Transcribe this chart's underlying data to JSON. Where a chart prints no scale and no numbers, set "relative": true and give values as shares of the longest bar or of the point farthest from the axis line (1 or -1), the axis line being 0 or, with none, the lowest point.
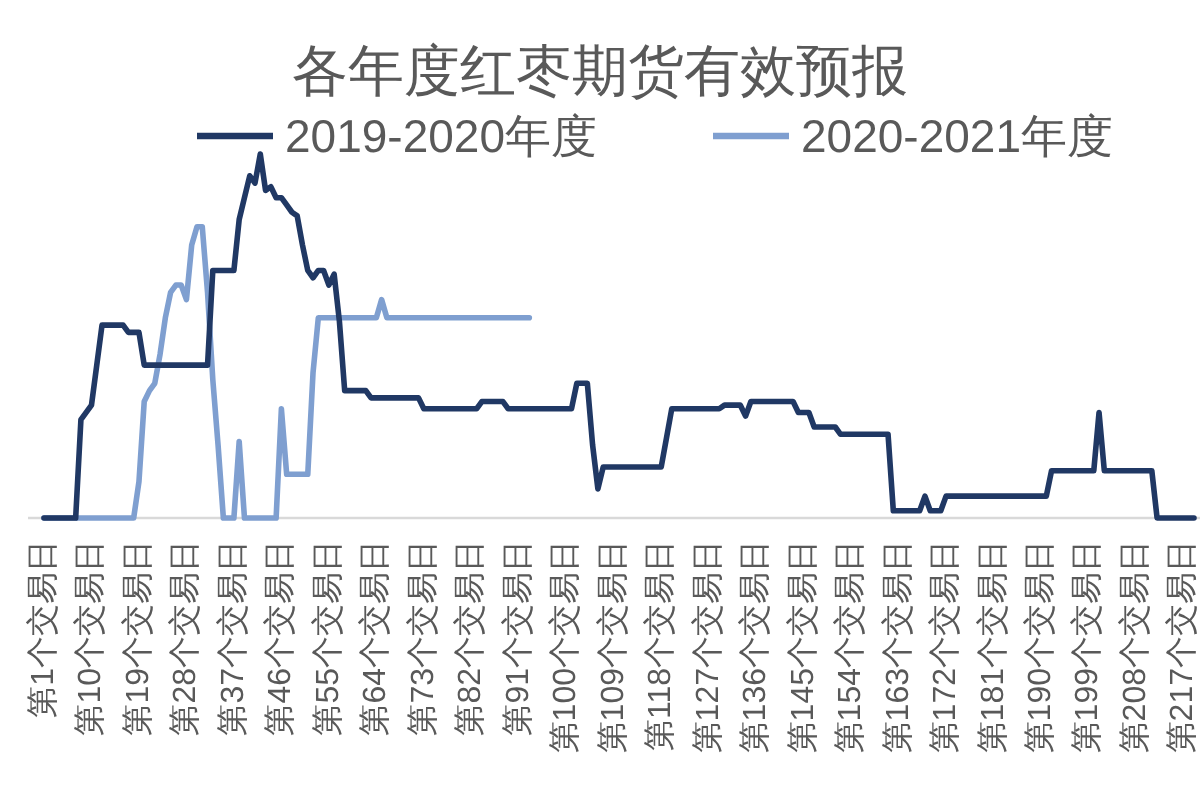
{
  "chart_data": {
    "type": "line",
    "title": "各年度红枣期货有效预报",
    "relative": true,
    "legend": "top",
    "line_style": "solid",
    "categories": [
      "第1个交易日",
      null,
      null,
      null,
      null,
      null,
      null,
      null,
      null,
      "第10个交易日",
      null,
      null,
      null,
      null,
      null,
      null,
      null,
      null,
      "第19个交易日",
      null,
      null,
      null,
      null,
      null,
      null,
      null,
      null,
      "第28个交易日",
      null,
      null,
      null,
      null,
      null,
      null,
      null,
      null,
      "第37个交易日",
      null,
      null,
      null,
      null,
      null,
      null,
      null,
      null,
      "第46个交易日",
      null,
      null,
      null,
      null,
      null,
      null,
      null,
      null,
      "第55个交易日",
      null,
      null,
      null,
      null,
      null,
      null,
      null,
      null,
      "第64个交易日",
      null,
      null,
      null,
      null,
      null,
      null,
      null,
      null,
      "第73个交易日",
      null,
      null,
      null,
      null,
      null,
      null,
      null,
      null,
      "第82个交易日",
      null,
      null,
      null,
      null,
      null,
      null,
      null,
      null,
      "第91个交易日",
      null,
      null,
      null,
      null,
      null,
      null,
      null,
      null,
      "第100个交易日",
      null,
      null,
      null,
      null,
      null,
      null,
      null,
      null,
      "第109个交易日",
      null,
      null,
      null,
      null,
      null,
      null,
      null,
      null,
      "第118个交易日",
      null,
      null,
      null,
      null,
      null,
      null,
      null,
      null,
      "第127个交易日",
      null,
      null,
      null,
      null,
      null,
      null,
      null,
      null,
      "第136个交易日",
      null,
      null,
      null,
      null,
      null,
      null,
      null,
      null,
      "第145个交易日",
      null,
      null,
      null,
      null,
      null,
      null,
      null,
      null,
      "第154个交易日",
      null,
      null,
      null,
      null,
      null,
      null,
      null,
      null,
      "第163个交易日",
      null,
      null,
      null,
      null,
      null,
      null,
      null,
      null,
      "第172个交易日",
      null,
      null,
      null,
      null,
      null,
      null,
      null,
      null,
      "第181个交易日",
      null,
      null,
      null,
      null,
      null,
      null,
      null,
      null,
      "第190个交易日",
      null,
      null,
      null,
      null,
      null,
      null,
      null,
      null,
      "第199个交易日",
      null,
      null,
      null,
      null,
      null,
      null,
      null,
      null,
      "第208个交易日",
      null,
      null,
      null,
      null,
      null,
      null,
      null,
      null,
      "第217个交易日",
      null,
      null
    ],
    "series": [
      {
        "name": "2019-2020年度",
        "color": "#203864",
        "values": [
          0,
          0,
          0,
          0,
          0,
          0,
          0,
          0.27,
          0.29,
          0.31,
          0.42,
          0.53,
          0.53,
          0.53,
          0.53,
          0.53,
          0.51,
          0.51,
          0.51,
          0.42,
          0.42,
          0.42,
          0.42,
          0.42,
          0.42,
          0.42,
          0.42,
          0.42,
          0.42,
          0.42,
          0.42,
          0.42,
          0.68,
          0.68,
          0.68,
          0.68,
          0.68,
          0.82,
          0.88,
          0.94,
          0.92,
          1,
          0.9,
          0.91,
          0.88,
          0.88,
          0.86,
          0.84,
          0.83,
          0.75,
          0.68,
          0.66,
          0.68,
          0.68,
          0.64,
          0.67,
          0.54,
          0.35,
          0.35,
          0.35,
          0.35,
          0.35,
          0.33,
          0.33,
          0.33,
          0.33,
          0.33,
          0.33,
          0.33,
          0.33,
          0.33,
          0.33,
          0.3,
          0.3,
          0.3,
          0.3,
          0.3,
          0.3,
          0.3,
          0.3,
          0.3,
          0.3,
          0.3,
          0.32,
          0.32,
          0.32,
          0.32,
          0.32,
          0.3,
          0.3,
          0.3,
          0.3,
          0.3,
          0.3,
          0.3,
          0.3,
          0.3,
          0.3,
          0.3,
          0.3,
          0.3,
          0.37,
          0.37,
          0.37,
          0.2,
          0.08,
          0.14,
          0.14,
          0.14,
          0.14,
          0.14,
          0.14,
          0.14,
          0.14,
          0.14,
          0.14,
          0.14,
          0.14,
          0.22,
          0.3,
          0.3,
          0.3,
          0.3,
          0.3,
          0.3,
          0.3,
          0.3,
          0.3,
          0.3,
          0.31,
          0.31,
          0.31,
          0.31,
          0.28,
          0.32,
          0.32,
          0.32,
          0.32,
          0.32,
          0.32,
          0.32,
          0.32,
          0.32,
          0.29,
          0.29,
          0.29,
          0.25,
          0.25,
          0.25,
          0.25,
          0.25,
          0.23,
          0.23,
          0.23,
          0.23,
          0.23,
          0.23,
          0.23,
          0.23,
          0.23,
          0.23,
          0.02,
          0.02,
          0.02,
          0.02,
          0.02,
          0.02,
          0.06,
          0.02,
          0.02,
          0.02,
          0.06,
          0.06,
          0.06,
          0.06,
          0.06,
          0.06,
          0.06,
          0.06,
          0.06,
          0.06,
          0.06,
          0.06,
          0.06,
          0.06,
          0.06,
          0.06,
          0.06,
          0.06,
          0.06,
          0.06,
          0.13,
          0.13,
          0.13,
          0.13,
          0.13,
          0.13,
          0.13,
          0.13,
          0.13,
          0.29,
          0.13,
          0.13,
          0.13,
          0.13,
          0.13,
          0.13,
          0.13,
          0.13,
          0.13,
          0.13,
          0,
          0,
          0,
          0,
          0,
          0,
          0,
          0
        ]
      },
      {
        "name": "2020-2021年度",
        "color": "#7f9fd0",
        "values": [
          0,
          0,
          0,
          0,
          0,
          0,
          0,
          0,
          0,
          0,
          0,
          0,
          0,
          0,
          0,
          0,
          0,
          0,
          0.1,
          0.32,
          0.35,
          0.37,
          0.45,
          0.55,
          0.62,
          0.64,
          0.64,
          0.6,
          0.75,
          0.8,
          0.8,
          0.62,
          0.38,
          0.2,
          0,
          0,
          0,
          0.21,
          0,
          0,
          0,
          0,
          0,
          0,
          0,
          0.3,
          0.12,
          0.12,
          0.12,
          0.12,
          0.12,
          0.4,
          0.55,
          0.55,
          0.55,
          0.55,
          0.55,
          0.55,
          0.55,
          0.55,
          0.55,
          0.55,
          0.55,
          0.55,
          0.6,
          0.55,
          0.55,
          0.55,
          0.55,
          0.55,
          0.55,
          0.55,
          0.55,
          0.55,
          0.55,
          0.55,
          0.55,
          0.55,
          0.55,
          0.55,
          0.55,
          0.55,
          0.55,
          0.55,
          0.55,
          0.55,
          0.55,
          0.55,
          0.55,
          0.55,
          0.55,
          0.55,
          0.55,
          null,
          null,
          null,
          null,
          null,
          null,
          null,
          null,
          null,
          null,
          null,
          null,
          null,
          null,
          null,
          null,
          null,
          null,
          null,
          null,
          null,
          null,
          null,
          null,
          null,
          null,
          null,
          null,
          null,
          null,
          null,
          null,
          null,
          null,
          null,
          null,
          null,
          null,
          null,
          null,
          null,
          null,
          null,
          null,
          null,
          null,
          null,
          null,
          null,
          null,
          null,
          null,
          null,
          null,
          null,
          null,
          null,
          null,
          null,
          null,
          null,
          null,
          null,
          null,
          null,
          null,
          null,
          null,
          null,
          null,
          null,
          null,
          null,
          null,
          null,
          null,
          null,
          null,
          null,
          null,
          null,
          null,
          null,
          null,
          null,
          null,
          null,
          null,
          null,
          null,
          null,
          null,
          null,
          null,
          null,
          null,
          null,
          null,
          null,
          null,
          null,
          null,
          null,
          null,
          null,
          null,
          null,
          null,
          null,
          null,
          null,
          null,
          null,
          null,
          null,
          null,
          null,
          null,
          null,
          null,
          null,
          null,
          null,
          null,
          null,
          null
        ]
      }
    ]
  }
}
